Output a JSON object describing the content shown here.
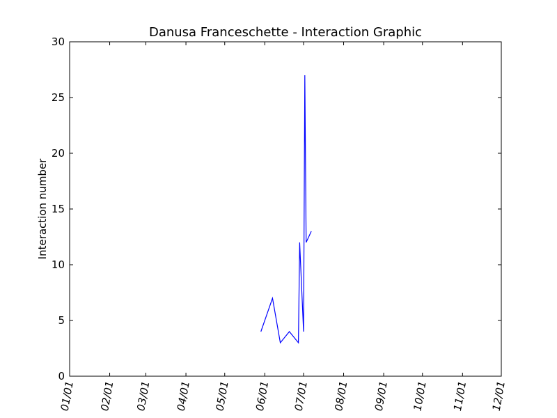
{
  "chart_data": {
    "type": "line",
    "title": "Danusa Franceschette - Interaction Graphic",
    "xlabel": "",
    "ylabel": "Interaction number",
    "xlim": [
      "01/01",
      "12/01"
    ],
    "ylim": [
      0,
      30
    ],
    "grid": false,
    "x_ticks": [
      "01/01",
      "02/01",
      "03/01",
      "04/01",
      "05/01",
      "06/01",
      "07/01",
      "08/01",
      "09/01",
      "10/01",
      "11/01",
      "12/01"
    ],
    "y_ticks": [
      0,
      5,
      10,
      15,
      20,
      25,
      30
    ],
    "series": [
      {
        "color": "#0000ff",
        "x": [
          "05/29",
          "06/07",
          "06/13",
          "06/20",
          "06/27",
          "06/28",
          "07/01",
          "07/02",
          "07/03",
          "07/07"
        ],
        "y": [
          4,
          7,
          3,
          4,
          3,
          12,
          4,
          27,
          12,
          13
        ]
      }
    ]
  }
}
